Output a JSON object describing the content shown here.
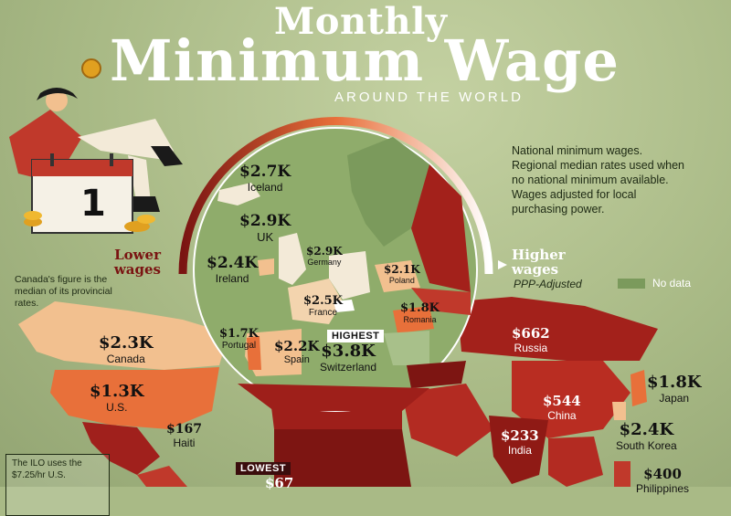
{
  "header": {
    "title_line1": "Monthly",
    "title_line2": "Minimum Wage",
    "subtitle": "AROUND THE WORLD"
  },
  "calendar_day": "1",
  "note": "National minimum wages. Regional median rates used when no national minimum available. Wages adjusted for local purchasing power.",
  "canada_note": "Canada's figure is the median of its provincial rates.",
  "ilo_note": "The ILO uses the $7.25/hr U.S.",
  "legend": {
    "lower": "Lower wages",
    "higher": "Higher wages",
    "ppp": "PPP-Adjusted",
    "no_data": "No data"
  },
  "tags": {
    "highest": "HIGHEST",
    "lowest": "LOWEST"
  },
  "countries": [
    {
      "name": "Iceland",
      "value": "$2.7K"
    },
    {
      "name": "UK",
      "value": "$2.9K"
    },
    {
      "name": "Ireland",
      "value": "$2.4K"
    },
    {
      "name": "Germany",
      "value": "$2.9K"
    },
    {
      "name": "Poland",
      "value": "$2.1K"
    },
    {
      "name": "France",
      "value": "$2.5K"
    },
    {
      "name": "Romania",
      "value": "$1.8K"
    },
    {
      "name": "Portugal",
      "value": "$1.7K"
    },
    {
      "name": "Spain",
      "value": "$2.2K"
    },
    {
      "name": "Switzerland",
      "value": "$3.8K"
    },
    {
      "name": "Canada",
      "value": "$2.3K"
    },
    {
      "name": "U.S.",
      "value": "$1.3K"
    },
    {
      "name": "Haiti",
      "value": "$167"
    },
    {
      "name": "Russia",
      "value": "$662"
    },
    {
      "name": "China",
      "value": "$544"
    },
    {
      "name": "India",
      "value": "$233"
    },
    {
      "name": "Japan",
      "value": "$1.8K"
    },
    {
      "name": "South Korea",
      "value": "$2.4K"
    },
    {
      "name": "Philippines",
      "value": "$400"
    },
    {
      "name": "",
      "value": "$67"
    }
  ],
  "colors": {
    "background": "#a9ba86",
    "highest": "#f3ead8",
    "high": "#f2c08f",
    "mid": "#e8703a",
    "low": "#c0392b",
    "lowest": "#5e0f0f",
    "no_data": "#7b9a5c"
  }
}
